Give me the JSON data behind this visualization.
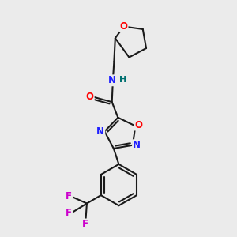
{
  "bg_color": "#ebebeb",
  "bond_color": "#1a1a1a",
  "bond_width": 1.5,
  "atom_colors": {
    "O": "#ff0000",
    "N": "#2020ff",
    "F": "#cc00cc",
    "C": "#1a1a1a",
    "H": "#007070"
  },
  "font_size": 8.5,
  "fig_size": [
    3.0,
    3.0
  ],
  "dpi": 100
}
